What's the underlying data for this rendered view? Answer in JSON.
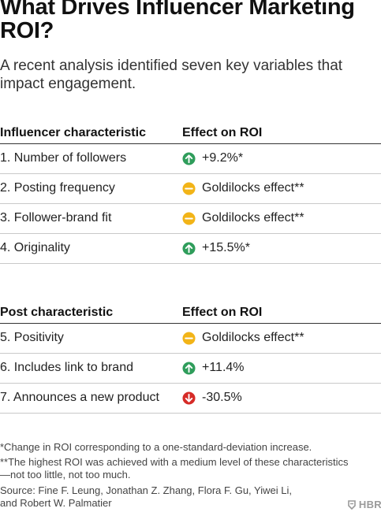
{
  "title_line1": "What Drives Influencer Marketing",
  "title_line2": "ROI?",
  "subtitle_line1": "A recent analysis identified seven key variables that",
  "subtitle_line2": "impact engagement.",
  "colors": {
    "up": "#2f9d5b",
    "neutral": "#f2b418",
    "down": "#d62b27"
  },
  "tables": [
    {
      "col1_header": "Influencer characteristic",
      "col2_header": "Effect on ROI",
      "rows": [
        {
          "label": "1. Number of followers",
          "effect": "+9.2%*",
          "icon": "arrow-up-icon"
        },
        {
          "label": "2. Posting frequency",
          "effect": "Goldilocks effect**",
          "icon": "neutral-dash-icon"
        },
        {
          "label": "3. Follower-brand fit",
          "effect": "Goldilocks effect**",
          "icon": "neutral-dash-icon"
        },
        {
          "label": "4. Originality",
          "effect": "+15.5%*",
          "icon": "arrow-up-icon"
        }
      ]
    },
    {
      "col1_header": "Post characteristic",
      "col2_header": "Effect on ROI",
      "rows": [
        {
          "label": "5. Positivity",
          "effect": "Goldilocks effect**",
          "icon": "neutral-dash-icon"
        },
        {
          "label": "6. Includes link to brand",
          "effect": "+11.4%",
          "icon": "arrow-up-icon"
        },
        {
          "label": "7. Announces a new product",
          "effect": "-30.5%",
          "icon": "arrow-down-icon"
        }
      ]
    }
  ],
  "footnotes": {
    "note1": "*Change in ROI corresponding to a one-standard-deviation increase.",
    "note2_line1": "**The highest ROI was achieved with a medium level of these characteristics",
    "note2_line2": "—not too little, not too much.",
    "source_line1": "Source: Fine F. Leung, Jonathan Z. Zhang, Flora F. Gu, Yiwei Li,",
    "source_line2": "and Robert W. Palmatier"
  },
  "logo_text": "HBR"
}
